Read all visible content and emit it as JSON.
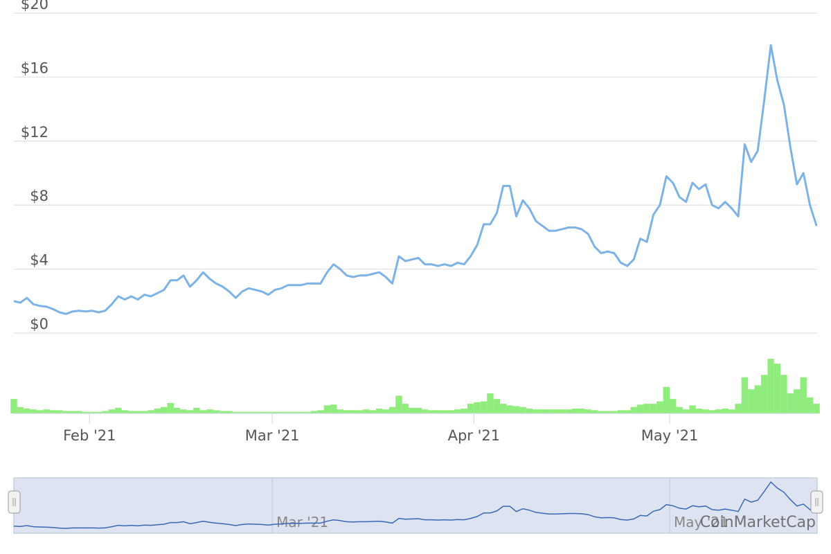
{
  "chart_data": {
    "type": "line",
    "watermark": "CoinMarketCap",
    "x": [
      0,
      1,
      2,
      3,
      4,
      5,
      6,
      7,
      8,
      9,
      10,
      11,
      12,
      13,
      14,
      15,
      16,
      17,
      18,
      19,
      20,
      21,
      22,
      23,
      24,
      25,
      26,
      27,
      28,
      29,
      30,
      31,
      32,
      33,
      34,
      35,
      36,
      37,
      38,
      39,
      40,
      41,
      42,
      43,
      44,
      45,
      46,
      47,
      48,
      49,
      50,
      51,
      52,
      53,
      54,
      55,
      56,
      57,
      58,
      59,
      60,
      61,
      62,
      63,
      64,
      65,
      66,
      67,
      68,
      69,
      70,
      71,
      72,
      73,
      74,
      75,
      76,
      77,
      78,
      79,
      80,
      81,
      82,
      83,
      84,
      85,
      86,
      87,
      88,
      89,
      90,
      91,
      92,
      93,
      94,
      95,
      96,
      97,
      98,
      99,
      100,
      101,
      102,
      103,
      104,
      105,
      106,
      107,
      108,
      109,
      110,
      111,
      112,
      113,
      114,
      115,
      116,
      117,
      118,
      119,
      120,
      121,
      122,
      123
    ],
    "xlim": [
      0,
      123.1
    ],
    "xticks": [
      {
        "value": 11.6,
        "label": "Feb '21"
      },
      {
        "value": 39.6,
        "label": "Mar '21"
      },
      {
        "value": 70.5,
        "label": "Apr '21"
      },
      {
        "value": 100.5,
        "label": "May '21"
      }
    ],
    "ylim": [
      0,
      20
    ],
    "yticks": [
      {
        "value": 0,
        "label": "$0"
      },
      {
        "value": 4,
        "label": "$4"
      },
      {
        "value": 8,
        "label": "$8"
      },
      {
        "value": 12,
        "label": "$12"
      },
      {
        "value": 16,
        "label": "$16"
      },
      {
        "value": 20,
        "label": "$20"
      }
    ],
    "y2lim": [
      0,
      100
    ],
    "grid": true,
    "series": [
      {
        "type": "line",
        "color": "#7cb2e6",
        "values": [
          2.0,
          1.9,
          2.2,
          1.8,
          1.7,
          1.65,
          1.5,
          1.3,
          1.2,
          1.35,
          1.4,
          1.35,
          1.4,
          1.3,
          1.4,
          1.8,
          2.3,
          2.1,
          2.3,
          2.1,
          2.4,
          2.3,
          2.5,
          2.7,
          3.3,
          3.3,
          3.6,
          2.9,
          3.3,
          3.8,
          3.4,
          3.1,
          2.9,
          2.6,
          2.2,
          2.6,
          2.8,
          2.7,
          2.6,
          2.4,
          2.7,
          2.8,
          3.0,
          3.0,
          3.0,
          3.1,
          3.1,
          3.1,
          3.8,
          4.3,
          4.0,
          3.6,
          3.5,
          3.6,
          3.6,
          3.7,
          3.8,
          3.5,
          3.1,
          4.8,
          4.5,
          4.6,
          4.7,
          4.3,
          4.3,
          4.2,
          4.3,
          4.2,
          4.4,
          4.3,
          4.8,
          5.5,
          6.8,
          6.8,
          7.5,
          9.2,
          9.2,
          7.3,
          8.3,
          7.8,
          7.0,
          6.7,
          6.4,
          6.4,
          6.5,
          6.6,
          6.6,
          6.5,
          6.2,
          5.4,
          5.0,
          5.1,
          5.0,
          4.4,
          4.2,
          4.6,
          5.9,
          5.7,
          7.4,
          8.0,
          9.8,
          9.4,
          8.5,
          8.2,
          9.4,
          9.0,
          9.3,
          8.0,
          7.8,
          8.2,
          7.8,
          7.3,
          11.8,
          10.7,
          11.4,
          14.6,
          18.0,
          15.8,
          14.3,
          11.6,
          9.3,
          10.0,
          8.0,
          6.7
        ]
      },
      {
        "type": "bar",
        "axis": "y2",
        "color": "#90ed7d",
        "values": [
          18,
          8,
          6,
          5,
          4,
          5,
          4,
          4,
          3,
          3,
          3,
          2,
          2,
          2,
          3,
          5,
          7,
          4,
          3,
          3,
          3,
          4,
          6,
          8,
          13,
          7,
          5,
          4,
          7,
          4,
          5,
          4,
          3,
          3,
          2,
          2,
          2,
          2,
          2,
          2,
          2,
          2,
          2,
          2,
          2,
          2,
          3,
          4,
          10,
          11,
          5,
          4,
          4,
          4,
          5,
          4,
          6,
          5,
          8,
          22,
          12,
          7,
          7,
          5,
          4,
          4,
          4,
          4,
          5,
          6,
          12,
          14,
          15,
          25,
          18,
          12,
          10,
          9,
          8,
          6,
          5,
          5,
          5,
          5,
          5,
          5,
          6,
          6,
          5,
          4,
          3,
          3,
          3,
          4,
          4,
          8,
          11,
          12,
          12,
          15,
          33,
          18,
          8,
          5,
          10,
          6,
          5,
          4,
          5,
          6,
          5,
          12,
          45,
          30,
          35,
          48,
          68,
          62,
          48,
          25,
          30,
          45,
          20,
          12
        ]
      }
    ]
  }
}
